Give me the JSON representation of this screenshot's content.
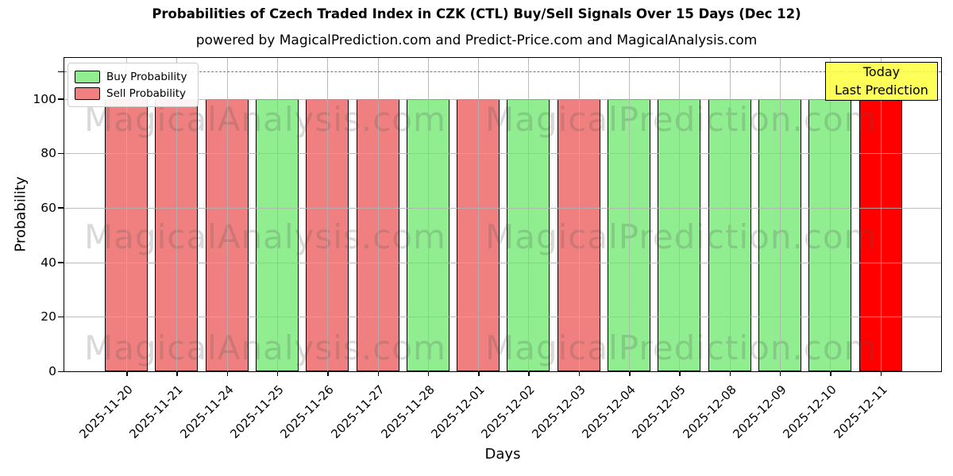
{
  "page": {
    "title": "Probabilities of Czech Traded Index in CZK (CTL) Buy/Sell Signals Over 15 Days (Dec 12)",
    "subtitle": "powered by MagicalPrediction.com and Predict-Price.com and MagicalAnalysis.com"
  },
  "chart_data": {
    "type": "bar",
    "title": "Probabilities of Czech Traded Index in CZK (CTL) Buy/Sell Signals Over 15 Days (Dec 12)",
    "subtitle": "powered by MagicalPrediction.com and Predict-Price.com and MagicalAnalysis.com",
    "xlabel": "Days",
    "ylabel": "Probability",
    "ylim": [
      0,
      115
    ],
    "yticks": [
      0,
      20,
      40,
      60,
      80,
      100
    ],
    "dashed_line_y": 110,
    "grid": true,
    "legend_position": "upper left",
    "categories": [
      "2025-11-20",
      "2025-11-21",
      "2025-11-24",
      "2025-11-25",
      "2025-11-26",
      "2025-11-27",
      "2025-11-28",
      "2025-12-01",
      "2025-12-02",
      "2025-12-03",
      "2025-12-04",
      "2025-12-05",
      "2025-12-08",
      "2025-12-09",
      "2025-12-10",
      "2025-12-11"
    ],
    "series": [
      {
        "name": "Buy Probability",
        "color": "#90ee90",
        "values": [
          0,
          0,
          0,
          100,
          0,
          0,
          100,
          0,
          100,
          0,
          100,
          100,
          100,
          100,
          100,
          0
        ]
      },
      {
        "name": "Sell Probability",
        "color": "#f08080",
        "values": [
          100,
          100,
          100,
          0,
          100,
          100,
          0,
          100,
          0,
          100,
          0,
          0,
          0,
          0,
          0,
          100
        ]
      }
    ],
    "today_bar": {
      "category": "2025-12-11",
      "value": 100,
      "color": "#ff0000",
      "series": "Sell Probability"
    }
  },
  "annotation": {
    "line1": "Today",
    "line2": "Last Prediction",
    "bg_color": "#ffff55"
  },
  "watermarks": [
    "MagicalAnalysis.com",
    "MagicalPrediction.com"
  ],
  "colors": {
    "buy": "#90ee90",
    "sell": "#f08080",
    "today": "#ff0000",
    "grid": "#b0b0b0",
    "dashed_line": "#777777",
    "watermark": "#5a5a5a",
    "annotation_bg": "#ffff55",
    "bar_edge": "#000000"
  }
}
